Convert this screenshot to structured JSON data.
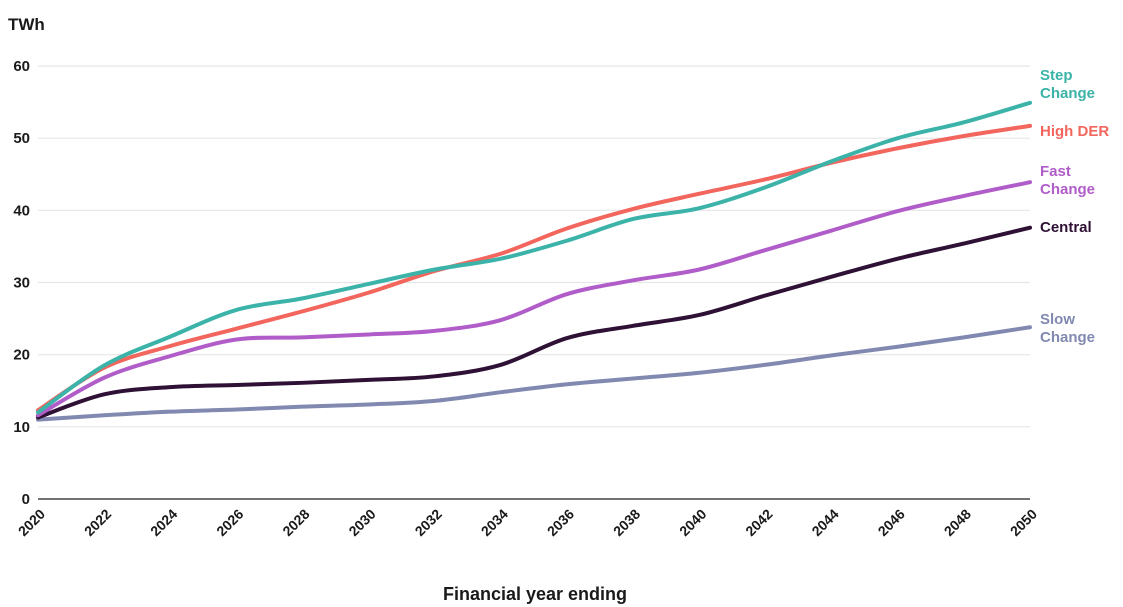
{
  "chart_data": {
    "type": "line",
    "ylabel": "TWh",
    "xlabel": "Financial year ending",
    "ylim": [
      0,
      60
    ],
    "yticks": [
      0,
      10,
      20,
      30,
      40,
      50,
      60
    ],
    "xlim": [
      2020,
      2050
    ],
    "xticks": [
      "2020",
      "2022",
      "2024",
      "2026",
      "2028",
      "2030",
      "2032",
      "2034",
      "2036",
      "2038",
      "2040",
      "2042",
      "2044",
      "2046",
      "2048",
      "2050"
    ],
    "grid": "horizontal",
    "legend": "labels at right end of lines",
    "x": [
      2020,
      2022,
      2024,
      2026,
      2028,
      2030,
      2032,
      2034,
      2036,
      2038,
      2040,
      2042,
      2044,
      2046,
      2048,
      2050
    ],
    "series": [
      {
        "name": "Step Change",
        "color": "#3bb3a8",
        "values": [
          12.0,
          18.5,
          22.5,
          26.2,
          27.8,
          29.8,
          31.8,
          33.3,
          35.8,
          38.8,
          40.3,
          43.2,
          46.8,
          50.0,
          52.2,
          54.9
        ]
      },
      {
        "name": "High DER",
        "color": "#f2665e",
        "values": [
          12.3,
          18.2,
          21.2,
          23.6,
          26.0,
          28.6,
          31.6,
          34.0,
          37.5,
          40.2,
          42.3,
          44.3,
          46.6,
          48.6,
          50.3,
          51.7
        ]
      },
      {
        "name": "Fast Change",
        "color": "#b15dc9",
        "values": [
          11.6,
          16.8,
          19.8,
          22.1,
          22.4,
          22.8,
          23.3,
          24.8,
          28.4,
          30.3,
          31.8,
          34.5,
          37.2,
          39.9,
          42.0,
          43.9
        ]
      },
      {
        "name": "Central",
        "color": "#2e1135",
        "values": [
          11.3,
          14.5,
          15.5,
          15.8,
          16.1,
          16.5,
          17.0,
          18.6,
          22.3,
          24.0,
          25.5,
          28.2,
          30.8,
          33.3,
          35.4,
          37.6
        ]
      },
      {
        "name": "Slow Change",
        "color": "#8289b0",
        "values": [
          11.0,
          11.6,
          12.1,
          12.4,
          12.8,
          13.1,
          13.6,
          14.8,
          15.9,
          16.7,
          17.5,
          18.6,
          19.9,
          21.1,
          22.4,
          23.8
        ]
      }
    ],
    "legend_labels": [
      {
        "lines": [
          "Step",
          "Change"
        ]
      },
      {
        "lines": [
          "High DER"
        ]
      },
      {
        "lines": [
          "Fast",
          "Change"
        ]
      },
      {
        "lines": [
          "Central"
        ]
      },
      {
        "lines": [
          "Slow",
          "Change"
        ]
      }
    ]
  }
}
